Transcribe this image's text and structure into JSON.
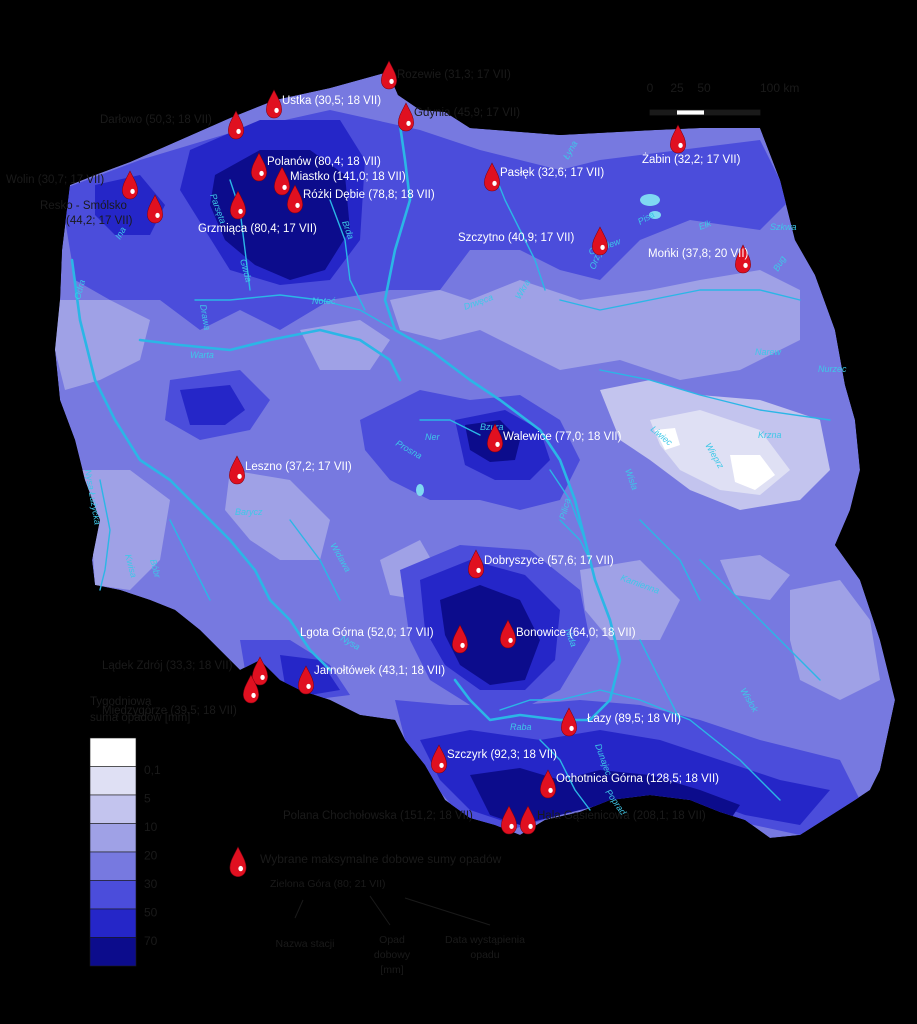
{
  "colors": {
    "background": "#000000",
    "c_0": "#ffffff",
    "c_01": "#dfe0f4",
    "c_5": "#c3c4ee",
    "c_10": "#9fa1e6",
    "c_20": "#7779e0",
    "c_30": "#4b4ddb",
    "c_50": "#2526c8",
    "c_70": "#0c0c8c",
    "river": "#2bb6e6",
    "marker": "#e01020"
  },
  "scale": {
    "labels": [
      "0",
      "25",
      "50",
      "100 km"
    ]
  },
  "legend": {
    "title_line1": "Tygodniowa",
    "title_line2": "suma opadów [mm]",
    "classes": [
      "0,1",
      "5",
      "10",
      "20",
      "30",
      "50",
      "70"
    ],
    "marker_label": "Wybrane maksymalne dobowe sumy opadów",
    "example": "Zielona Góra (80; 21 VII)",
    "example_station": "Nazwa stacji",
    "example_precip_1": "Opad",
    "example_precip_2": "dobowy",
    "example_precip_3": "[mm]",
    "example_date_1": "Data wystąpienia",
    "example_date_2": "opadu"
  },
  "stations": [
    {
      "label": "Rozewie (31,3; 17 VII)",
      "icon": "raindrop-icon"
    },
    {
      "label": "Ustka (30,5; 18 VII)",
      "icon": "raindrop-icon"
    },
    {
      "label": "Darłowo (50,3; 18 VII)",
      "icon": "raindrop-icon"
    },
    {
      "label": "Gdynia (45,9; 17 VII)",
      "icon": "raindrop-icon"
    },
    {
      "label": "Żabin (32,2; 17 VII)",
      "icon": "raindrop-icon"
    },
    {
      "label": "Polanów (80,4; 18 VII)",
      "icon": "raindrop-icon"
    },
    {
      "label": "Miastko (141,0; 18 VII)",
      "icon": "raindrop-icon"
    },
    {
      "label": "Różki Dębie (78,8; 18 VII)",
      "icon": "raindrop-icon"
    },
    {
      "label": "Pasłęk (32,6; 17 VII)",
      "icon": "raindrop-icon"
    },
    {
      "label": "Wolin (30,7; 17 VII)",
      "icon": "raindrop-icon"
    },
    {
      "label": "Resko - Smólsko",
      "label2": "(44,2; 17 VII)",
      "icon": "raindrop-icon"
    },
    {
      "label": "Grzmiąca (80,4; 17 VII)",
      "icon": "raindrop-icon"
    },
    {
      "label": "Szczytno (40,9; 17 VII)",
      "icon": "raindrop-icon"
    },
    {
      "label": "Mońki (37,8; 20 VII)",
      "icon": "raindrop-icon"
    },
    {
      "label": "Walewice (77,0; 18 VII)",
      "icon": "raindrop-icon"
    },
    {
      "label": "Leszno (37,2; 17 VII)",
      "icon": "raindrop-icon"
    },
    {
      "label": "Dobryszyce (57,6; 17 VII)",
      "icon": "raindrop-icon"
    },
    {
      "label": "Lgota Górna (52,0; 17 VII)",
      "icon": "raindrop-icon"
    },
    {
      "label": "Bonowice (64,0; 18 VII)",
      "icon": "raindrop-icon"
    },
    {
      "label": "Lądek Zdrój (33,3; 18 VII)",
      "icon": "raindrop-icon"
    },
    {
      "label": "Jarnołtówek (43,1; 18 VII)",
      "icon": "raindrop-icon"
    },
    {
      "label": "Międzygórze (39,5; 18 VII)",
      "icon": "raindrop-icon"
    },
    {
      "label": "Łazy (89,5; 18 VII)",
      "icon": "raindrop-icon"
    },
    {
      "label": "Szczyrk (92,3; 18 VII)",
      "icon": "raindrop-icon"
    },
    {
      "label": "Ochotnica Górna (128,5; 18 VII)",
      "icon": "raindrop-icon"
    },
    {
      "label": "Polana Chochołowska (151,2; 18 VII)",
      "icon": "raindrop-icon"
    },
    {
      "label": "Hala Gąsienicowa (208,1; 18 VII)",
      "icon": "raindrop-icon"
    }
  ],
  "rivers": [
    "Łyna",
    "Wisła",
    "Odra",
    "Warta",
    "Noteć",
    "Parsęta",
    "Drawa",
    "Gwda",
    "Brda",
    "Ina",
    "Narew",
    "Nurzec",
    "Krzna",
    "Bug",
    "Pilica",
    "Bzura",
    "Ner",
    "Nysa Łużycka",
    "Barycz",
    "Widawa",
    "Bóbr",
    "Kwisa",
    "Raba",
    "Dunajec",
    "Poprad",
    "Wieprz",
    "Kamienna",
    "Nida",
    "Wisłok",
    "Orzyc",
    "Omulew",
    "Wkra",
    "Drwęca",
    "Liwiec",
    "Prosna",
    "Nysa",
    "Pisa",
    "Ełk",
    "Szkwa"
  ]
}
